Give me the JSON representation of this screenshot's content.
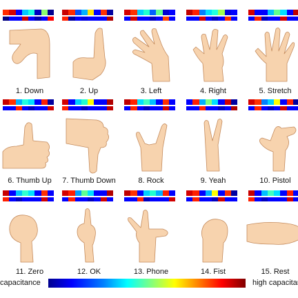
{
  "gestures": [
    {
      "label": "1. Down",
      "strip1": [
        "#ff2a00",
        "#d40000",
        "#0000ff",
        "#00c8ff",
        "#19ffe0",
        "#0000c0",
        "#8cff6e",
        "#000090"
      ],
      "strip2": [
        "#000080",
        "#0000ff",
        "#0000ff",
        "#c80000",
        "#0000ff",
        "#0000b0",
        "#0000ff",
        "#ff0000"
      ]
    },
    {
      "label": "2. Up",
      "strip1": [
        "#c80000",
        "#ff2a00",
        "#0050ff",
        "#00b0ff",
        "#ffe000",
        "#0000ff",
        "#ff3000",
        "#0000a0"
      ],
      "strip2": [
        "#ff2000",
        "#0000a0",
        "#0000ff",
        "#0000e0",
        "#0000ff",
        "#0000ff",
        "#0000ff",
        "#b00000"
      ]
    },
    {
      "label": "3. Left",
      "strip1": [
        "#d40000",
        "#ff3000",
        "#00d0ff",
        "#20ffd0",
        "#0060ff",
        "#60ff90",
        "#0000d0",
        "#0000ff"
      ],
      "strip2": [
        "#0000ff",
        "#d40000",
        "#0000ff",
        "#0000ff",
        "#0000c0",
        "#0000ff",
        "#ff4000",
        "#0000ff"
      ]
    },
    {
      "label": "4. Right",
      "strip1": [
        "#c00000",
        "#ff2000",
        "#0080ff",
        "#00e0ff",
        "#20ffe0",
        "#a0ff50",
        "#0000e0",
        "#0000ff"
      ],
      "strip2": [
        "#0000ff",
        "#0000ff",
        "#d00000",
        "#0000ff",
        "#0000c0",
        "#0000ff",
        "#ff3000",
        "#0000ff"
      ]
    },
    {
      "label": "5. Stretch",
      "strip1": [
        "#d40000",
        "#0000ff",
        "#0000ff",
        "#00c0ff",
        "#60ff90",
        "#00e0ff",
        "#0000ff",
        "#c00000"
      ],
      "strip2": [
        "#0000ff",
        "#ff2000",
        "#0000c0",
        "#0000ff",
        "#0000ff",
        "#d00000",
        "#0000ff",
        "#0000ff"
      ]
    },
    {
      "label": "6. Thumb Up",
      "strip1": [
        "#c80000",
        "#ff3000",
        "#00b0ff",
        "#20ffe0",
        "#00e0ff",
        "#0000ff",
        "#ff2000",
        "#0000a0"
      ],
      "strip2": [
        "#0000ff",
        "#0000ff",
        "#ff2000",
        "#0000ff",
        "#0000c0",
        "#0000ff",
        "#0000ff",
        "#d00000"
      ]
    },
    {
      "label": "7. Thumb Down",
      "strip1": [
        "#d40000",
        "#0000ff",
        "#00d0ff",
        "#20ffd0",
        "#ffff00",
        "#0000ff",
        "#0000ff",
        "#b00000"
      ],
      "strip2": [
        "#ff2000",
        "#0000ff",
        "#0000ff",
        "#0000c0",
        "#0000ff",
        "#0000ff",
        "#0000ff",
        "#c00000"
      ]
    },
    {
      "label": "8. Rock",
      "strip1": [
        "#c00000",
        "#ff2000",
        "#00e0ff",
        "#40ffc0",
        "#00c0ff",
        "#0000ff",
        "#ff3000",
        "#0000ff"
      ],
      "strip2": [
        "#0000ff",
        "#ff2000",
        "#0000ff",
        "#0000c0",
        "#0000ff",
        "#0000ff",
        "#d00000",
        "#0000ff"
      ]
    },
    {
      "label": "9. Yeah",
      "strip1": [
        "#0000ff",
        "#ff2000",
        "#00b0ff",
        "#80ff80",
        "#00e0ff",
        "#0000ff",
        "#d40000",
        "#0000a0"
      ],
      "strip2": [
        "#0000ff",
        "#0000ff",
        "#ff2000",
        "#0000ff",
        "#0000ff",
        "#0000c0",
        "#0000ff",
        "#b00000"
      ]
    },
    {
      "label": "10. Pistol",
      "strip1": [
        "#d40000",
        "#ff3000",
        "#0080ff",
        "#00d0ff",
        "#ffff00",
        "#0000ff",
        "#ff2000",
        "#0000a0"
      ],
      "strip2": [
        "#0000ff",
        "#ff2000",
        "#0000ff",
        "#0000c0",
        "#0000ff",
        "#d00000",
        "#0000ff",
        "#0000ff"
      ]
    },
    {
      "label": "11. Zero",
      "strip1": [
        "#c80000",
        "#0000ff",
        "#00c0ff",
        "#30ffd0",
        "#00e0ff",
        "#0000ff",
        "#ff3000",
        "#0000ff"
      ],
      "strip2": [
        "#ff2000",
        "#0000ff",
        "#0000c0",
        "#0000ff",
        "#0000ff",
        "#0000ff",
        "#d00000",
        "#0000ff"
      ]
    },
    {
      "label": "12. OK",
      "strip1": [
        "#d40000",
        "#ff2000",
        "#00a0ff",
        "#60ff90",
        "#00e0ff",
        "#0000ff",
        "#0000ff",
        "#b00000"
      ],
      "strip2": [
        "#0000ff",
        "#ff2000",
        "#0000ff",
        "#0000ff",
        "#0000c0",
        "#0000ff",
        "#d00000",
        "#0000ff"
      ]
    },
    {
      "label": "13. Phone",
      "strip1": [
        "#c00000",
        "#ff3000",
        "#0000ff",
        "#00d0ff",
        "#20ffd0",
        "#00b0ff",
        "#ff2000",
        "#0000ff"
      ],
      "strip2": [
        "#0000ff",
        "#0000ff",
        "#ff2000",
        "#0000c0",
        "#0000ff",
        "#0000ff",
        "#0000ff",
        "#d00000"
      ]
    },
    {
      "label": "14. Fist",
      "strip1": [
        "#d40000",
        "#ff2000",
        "#0000ff",
        "#00b0ff",
        "#ffff00",
        "#0000ff",
        "#ff3000",
        "#0000a0"
      ],
      "strip2": [
        "#0000ff",
        "#ff2000",
        "#0000ff",
        "#0000ff",
        "#0000c0",
        "#d00000",
        "#0000ff",
        "#0000ff"
      ]
    },
    {
      "label": "15. Rest",
      "strip1": [
        "#c80000",
        "#0000ff",
        "#00c0ff",
        "#40ffc0",
        "#00e0ff",
        "#0000ff",
        "#ff2000",
        "#0000ff"
      ],
      "strip2": [
        "#ff2000",
        "#0000ff",
        "#0000c0",
        "#0000ff",
        "#0000ff",
        "#0000ff",
        "#d00000",
        "#0000ff"
      ]
    }
  ],
  "colorbar": {
    "low_label": "capacitance",
    "high_label": "high capacitance"
  },
  "colors": {
    "skin": "#f7d3ae",
    "skin_stroke": "#c48b5d"
  }
}
